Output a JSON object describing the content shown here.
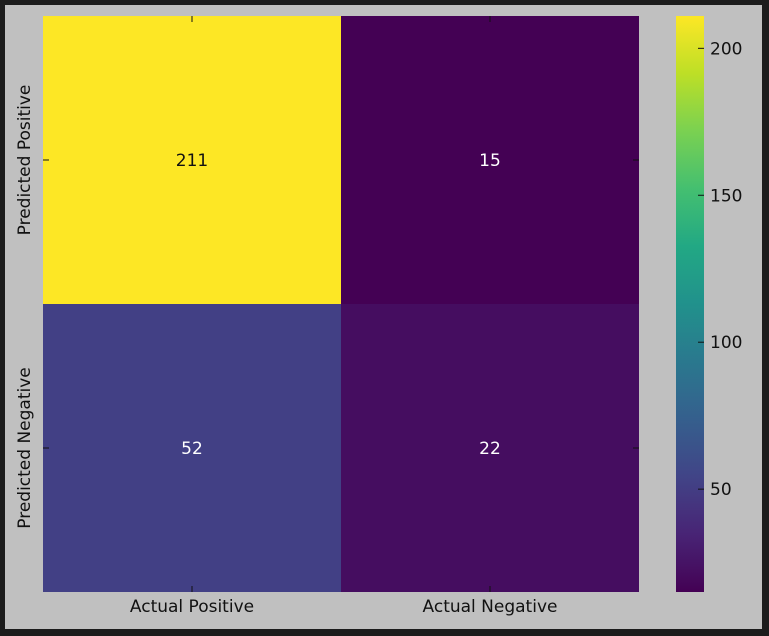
{
  "chart_data": {
    "type": "heatmap",
    "rows": [
      "Predicted Positive",
      "Predicted Negative"
    ],
    "columns": [
      "Actual Positive",
      "Actual Negative"
    ],
    "values": [
      [
        211,
        15
      ],
      [
        52,
        22
      ]
    ],
    "colormap": "viridis",
    "colorbar": {
      "range": [
        15,
        211
      ],
      "ticks": [
        50,
        100,
        150,
        200
      ]
    },
    "colors": {
      "figure_background": "#c0c0c0",
      "outer_frame": "#1c1c1c",
      "text_on_light": "#111111",
      "text_on_dark": "#ffffff"
    }
  }
}
